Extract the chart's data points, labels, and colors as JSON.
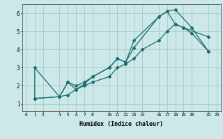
{
  "xlabel": "Humidex (Indice chaleur)",
  "bg_color": "#cce8e8",
  "line_color": "#1a6e6e",
  "grid_color": "#aacece",
  "xlim": [
    -0.5,
    23.5
  ],
  "ylim": [
    0.6,
    6.5
  ],
  "xticks": [
    0,
    1,
    2,
    4,
    5,
    6,
    7,
    8,
    10,
    11,
    12,
    13,
    14,
    16,
    17,
    18,
    19,
    20,
    22,
    23
  ],
  "yticks": [
    1,
    2,
    3,
    4,
    5,
    6
  ],
  "lines": [
    {
      "x": [
        1,
        1,
        4,
        5,
        6,
        7,
        8,
        10,
        11,
        12,
        13,
        16,
        17,
        18,
        20,
        22
      ],
      "y": [
        1.3,
        3.0,
        1.4,
        2.2,
        1.8,
        2.1,
        2.5,
        3.0,
        3.5,
        3.3,
        4.1,
        5.8,
        6.1,
        6.2,
        5.2,
        3.9
      ]
    },
    {
      "x": [
        1,
        4,
        5,
        6,
        7,
        8,
        10,
        11,
        12,
        13,
        16,
        17,
        18,
        19,
        22
      ],
      "y": [
        1.3,
        1.4,
        2.2,
        2.0,
        2.2,
        2.5,
        3.0,
        3.5,
        3.3,
        4.5,
        5.8,
        6.1,
        5.4,
        5.2,
        4.7
      ]
    },
    {
      "x": [
        1,
        4,
        5,
        6,
        7,
        8,
        10,
        11,
        12,
        13,
        14,
        16,
        17,
        18,
        19,
        20,
        22
      ],
      "y": [
        1.3,
        1.4,
        1.5,
        1.8,
        2.0,
        2.2,
        2.5,
        3.0,
        3.2,
        3.5,
        4.0,
        4.5,
        5.0,
        5.4,
        5.2,
        4.9,
        3.9
      ]
    }
  ]
}
